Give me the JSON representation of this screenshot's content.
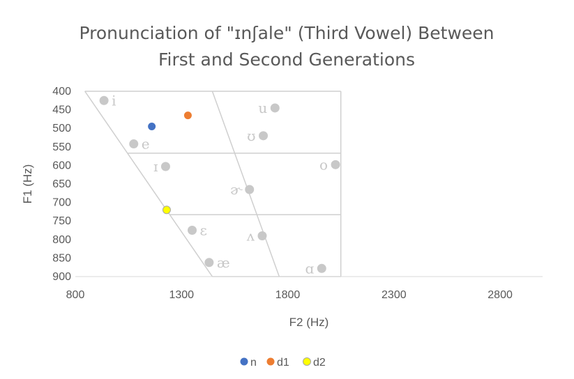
{
  "chart_data": {
    "type": "scatter",
    "title_line1": "Pronunciation of \"ɪnʃale\" (Third Vowel) Between",
    "title_line2": "First and Second Generations",
    "xlabel": "F2 (Hz)",
    "ylabel": "F1 (Hz)",
    "xlim": [
      800,
      3000
    ],
    "ylim": [
      400,
      900
    ],
    "y_reversed": true,
    "x_ticks": [
      800,
      1300,
      1800,
      2300,
      2800
    ],
    "y_ticks": [
      400,
      450,
      500,
      550,
      600,
      650,
      700,
      750,
      800,
      850,
      900
    ],
    "grid": false,
    "legend_position": "bottom",
    "vowel_chart": {
      "color": "#c8c8c8",
      "points": [
        {
          "symbol": "i",
          "x": 935,
          "y": 425
        },
        {
          "symbol": "e",
          "x": 1075,
          "y": 542
        },
        {
          "symbol": "ɪ",
          "x": 1225,
          "y": 603
        },
        {
          "symbol": "u",
          "x": 1740,
          "y": 445
        },
        {
          "symbol": "ʊ",
          "x": 1685,
          "y": 520
        },
        {
          "symbol": "o",
          "x": 2025,
          "y": 598
        },
        {
          "symbol": "ɚ",
          "x": 1620,
          "y": 665
        },
        {
          "symbol": "ɛ",
          "x": 1350,
          "y": 775
        },
        {
          "symbol": "ʌ",
          "x": 1680,
          "y": 790
        },
        {
          "symbol": "æ",
          "x": 1430,
          "y": 862
        },
        {
          "symbol": "ɑ",
          "x": 1960,
          "y": 878
        }
      ],
      "outline": {
        "left_edge": [
          [
            845,
            400
          ],
          [
            1445,
            900
          ]
        ],
        "middle_edge": [
          [
            1445,
            400
          ],
          [
            1760,
            900
          ]
        ],
        "right_edge": [
          [
            2050,
            400
          ],
          [
            2050,
            900
          ]
        ],
        "top_edge": [
          [
            845,
            400
          ],
          [
            2050,
            400
          ]
        ],
        "bottom_edge": [
          [
            1445,
            900
          ],
          [
            2050,
            900
          ]
        ],
        "upper_divider": [
          [
            1045,
            567
          ],
          [
            2050,
            567
          ]
        ],
        "lower_divider": [
          [
            1245,
            733
          ],
          [
            2050,
            733
          ]
        ]
      }
    },
    "series": [
      {
        "name": "n",
        "color": "#4472c4",
        "x": [
          1160
        ],
        "y": [
          495
        ]
      },
      {
        "name": "d1",
        "color": "#ed7d31",
        "x": [
          1330
        ],
        "y": [
          465
        ]
      },
      {
        "name": "d2",
        "color": "#ffff00",
        "x": [
          1230
        ],
        "y": [
          720
        ]
      }
    ]
  }
}
